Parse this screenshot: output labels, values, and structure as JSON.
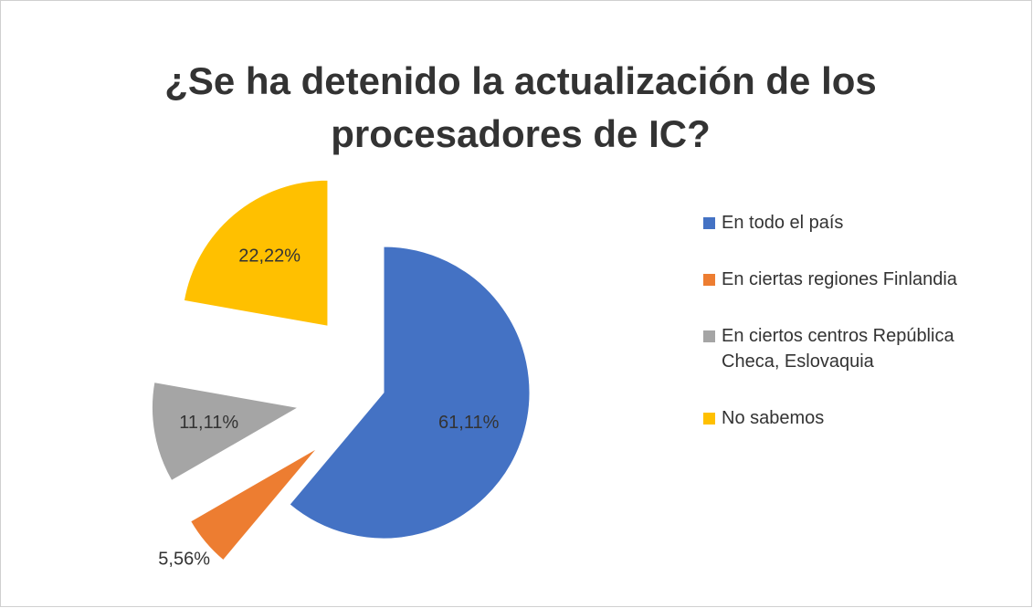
{
  "chart_data": {
    "type": "pie",
    "title": "¿Se ha detenido la actualización de los procesadores de IC?",
    "categories": [
      "En todo el país",
      "En ciertas regiones   Finlandia",
      "En ciertos centros  República Checa, Eslovaquia",
      "No sabemos"
    ],
    "values": [
      61.11,
      5.56,
      11.11,
      22.22
    ],
    "value_labels": [
      "61,11%",
      "5,56%",
      "11,11%",
      "22,22%"
    ],
    "colors": [
      "#4472c4",
      "#ed7d31",
      "#a5a5a5",
      "#ffc000"
    ],
    "legend": "right"
  }
}
